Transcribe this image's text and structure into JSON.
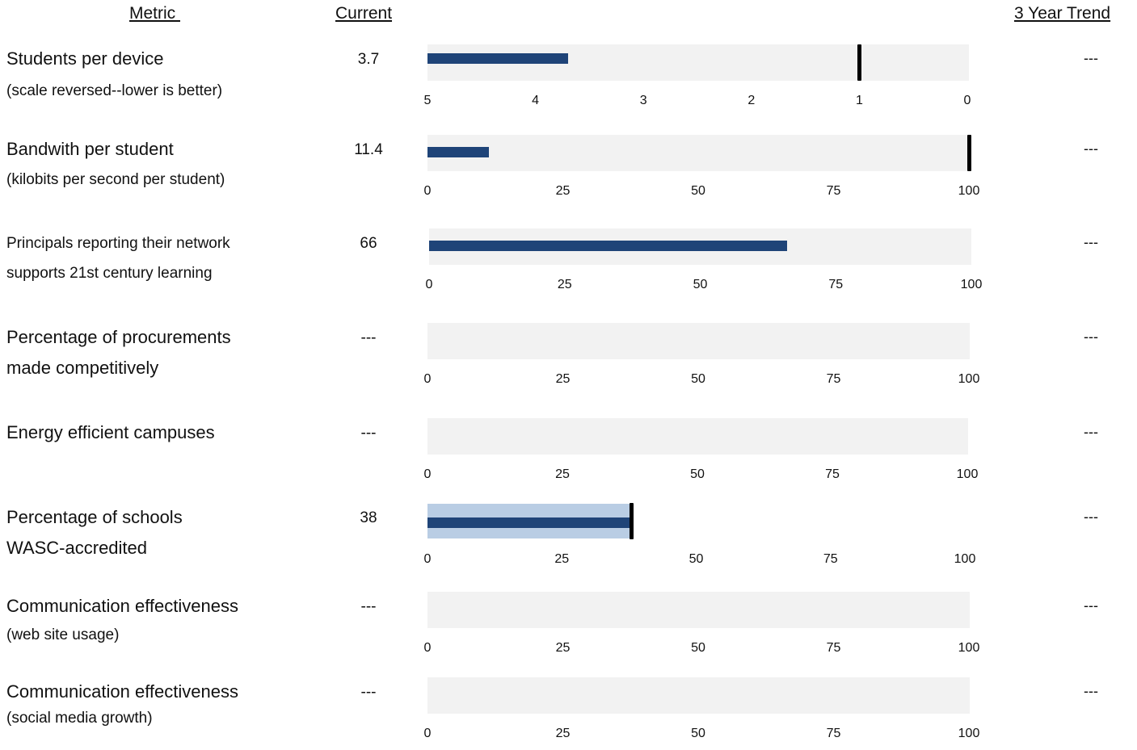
{
  "headers": {
    "metric": "Metric ",
    "current": "Current",
    "trend": "3 Year Trend"
  },
  "chart_data": {
    "type": "bar",
    "rows": [
      {
        "label": "Students per device",
        "sublabel": "(scale reversed--lower is better)",
        "current": "3.7",
        "trend": "---",
        "axis_min": 5,
        "axis_max": 0,
        "ticks": [
          "5",
          "4",
          "3",
          "2",
          "1",
          "0"
        ],
        "bar_value": 3.7,
        "target": 1
      },
      {
        "label": "Bandwith per student",
        "sublabel": "(kilobits per second per student)",
        "current": "11.4",
        "trend": "---",
        "axis_min": 0,
        "axis_max": 100,
        "ticks": [
          "0",
          "25",
          "50",
          "75",
          "100"
        ],
        "bar_value": 11.4,
        "target": 100
      },
      {
        "label": "Principals reporting their network",
        "sublabel": "supports 21st century learning",
        "current": "66",
        "trend": "---",
        "axis_min": 0,
        "axis_max": 100,
        "ticks": [
          "0",
          "25",
          "50",
          "75",
          "100"
        ],
        "bar_value": 66
      },
      {
        "label": "Percentage of procurements",
        "sublabel": "made competitively",
        "current": "---",
        "trend": "---",
        "axis_min": 0,
        "axis_max": 100,
        "ticks": [
          "0",
          "25",
          "50",
          "75",
          "100"
        ]
      },
      {
        "label": "Energy efficient campuses",
        "sublabel": "",
        "current": "---",
        "trend": "---",
        "axis_min": 0,
        "axis_max": 100,
        "ticks": [
          "0",
          "25",
          "50",
          "75",
          "100"
        ]
      },
      {
        "label": "Percentage of schools",
        "sublabel": "WASC-accredited",
        "current": "38",
        "trend": "---",
        "axis_min": 0,
        "axis_max": 100,
        "ticks": [
          "0",
          "25",
          "50",
          "75",
          "100"
        ],
        "bar_value": 38,
        "band_value": 38,
        "target": 38
      },
      {
        "label": "Communication effectiveness",
        "sublabel": "(web site usage)",
        "current": "---",
        "trend": "---",
        "axis_min": 0,
        "axis_max": 100,
        "ticks": [
          "0",
          "25",
          "50",
          "75",
          "100"
        ]
      },
      {
        "label": "Communication effectiveness",
        "sublabel": "(social media growth)",
        "current": "---",
        "trend": "---",
        "axis_min": 0,
        "axis_max": 100,
        "ticks": [
          "0",
          "25",
          "50",
          "75",
          "100"
        ]
      }
    ]
  }
}
